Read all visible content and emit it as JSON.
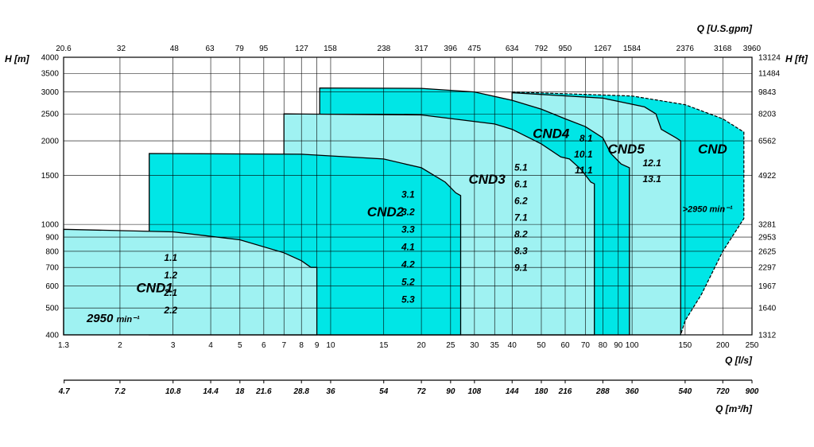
{
  "chart_data": {
    "type": "area",
    "title": "",
    "x_scale": "log",
    "y_scale": "log",
    "xlim": [
      1.3,
      250
    ],
    "ylim": [
      400,
      4000
    ],
    "axes": {
      "x_primary_label": "Q [l/s]",
      "x_primary_ticks": [
        "1.3",
        "2",
        "3",
        "4",
        "5",
        "6",
        "7",
        "8",
        "9",
        "10",
        "15",
        "20",
        "25",
        "30",
        "35",
        "40",
        "50",
        "60",
        "70",
        "80",
        "90",
        "100",
        "150",
        "200",
        "250"
      ],
      "x_top_label": "Q [U.S.gpm]",
      "x_top_ticks": [
        "20.6",
        "32",
        "48",
        "63",
        "79",
        "95",
        "127",
        "158",
        "238",
        "317",
        "396",
        "475",
        "634",
        "792",
        "950",
        "1267",
        "1584",
        "2376",
        "3168",
        "3960"
      ],
      "x_bottom_label": "Q [m³/h]",
      "x_bottom_ticks": [
        "4.7",
        "7.2",
        "10.8",
        "14.4",
        "18",
        "21.6",
        "28.8",
        "36",
        "54",
        "72",
        "90",
        "108",
        "144",
        "180",
        "216",
        "288",
        "360",
        "540",
        "720",
        "900"
      ],
      "y_left_label": "H [m]",
      "y_left_ticks": [
        "400",
        "500",
        "600",
        "700",
        "800",
        "900",
        "1000",
        "1500",
        "2000",
        "2500",
        "3000",
        "3500",
        "4000"
      ],
      "y_right_label": "H [ft]",
      "y_right_ticks": [
        "1312",
        "1640",
        "1967",
        "2297",
        "2625",
        "2953",
        "3281",
        "4922",
        "6562",
        "8203",
        "9843",
        "11484",
        "13124"
      ]
    },
    "speed_label": "2950",
    "speed_unit": "min⁻¹",
    "series": [
      {
        "name": "CND1",
        "color": "#9ff2f2",
        "variants": [
          "1.1",
          "1.2",
          "2.1",
          "2.2"
        ],
        "xmin": 1.3,
        "xmax": 9.0,
        "top": [
          [
            1.3,
            960
          ],
          [
            3,
            940
          ],
          [
            5,
            880
          ],
          [
            7,
            790
          ],
          [
            8,
            740
          ],
          [
            8.6,
            700
          ],
          [
            9,
            700
          ]
        ]
      },
      {
        "name": "CND2",
        "color": "#00e6e6",
        "variants": [
          "3.1",
          "3.2",
          "3.3",
          "4.1",
          "4.2",
          "5.2",
          "5.3"
        ],
        "xmin": 2.5,
        "xmax": 27.0,
        "top": [
          [
            2.5,
            1800
          ],
          [
            8,
            1790
          ],
          [
            15,
            1720
          ],
          [
            20,
            1600
          ],
          [
            24,
            1420
          ],
          [
            26,
            1300
          ],
          [
            27,
            1270
          ]
        ]
      },
      {
        "name": "CND3",
        "color": "#9ff2f2",
        "variants": [
          "5.1",
          "6.1",
          "6.2",
          "7.1",
          "8.2",
          "8.3",
          "9.1"
        ],
        "xmin": 7.0,
        "xmax": 75.0,
        "top": [
          [
            7,
            2500
          ],
          [
            20,
            2480
          ],
          [
            35,
            2300
          ],
          [
            40,
            2200
          ],
          [
            50,
            1950
          ],
          [
            58,
            1750
          ],
          [
            62,
            1720
          ],
          [
            68,
            1570
          ],
          [
            73,
            1420
          ],
          [
            75,
            1400
          ]
        ]
      },
      {
        "name": "CND4",
        "color": "#00e6e6",
        "variants": [
          "8.1",
          "10.1",
          "11.1"
        ],
        "xmin": 9.2,
        "xmax": 98.0,
        "top": [
          [
            9.2,
            3100
          ],
          [
            20,
            3090
          ],
          [
            30,
            3000
          ],
          [
            40,
            2800
          ],
          [
            50,
            2600
          ],
          [
            60,
            2400
          ],
          [
            70,
            2250
          ],
          [
            80,
            2050
          ],
          [
            85,
            1800
          ],
          [
            92,
            1650
          ],
          [
            98,
            1600
          ]
        ]
      },
      {
        "name": "CND5",
        "color": "#9ff2f2",
        "variants": [
          "12.1",
          "13.1"
        ],
        "xmin": 40.0,
        "xmax": 145.0,
        "top": [
          [
            40,
            2980
          ],
          [
            80,
            2850
          ],
          [
            110,
            2650
          ],
          [
            120,
            2500
          ],
          [
            125,
            2200
          ],
          [
            140,
            2050
          ],
          [
            145,
            2000
          ]
        ]
      },
      {
        "name": "CND",
        "color": "#00e6e6",
        "variants": [
          ">2950 min⁻¹"
        ],
        "xmin": 40.0,
        "xmax": 235.0,
        "top": [
          [
            40,
            3000
          ],
          [
            100,
            2900
          ],
          [
            150,
            2700
          ],
          [
            200,
            2400
          ],
          [
            235,
            2150
          ]
        ],
        "right": [
          [
            235,
            2150
          ],
          [
            235,
            1050
          ]
        ],
        "bottom": [
          [
            235,
            1050
          ],
          [
            200,
            800
          ],
          [
            170,
            560
          ],
          [
            150,
            450
          ],
          [
            145,
            400
          ]
        ]
      }
    ]
  }
}
